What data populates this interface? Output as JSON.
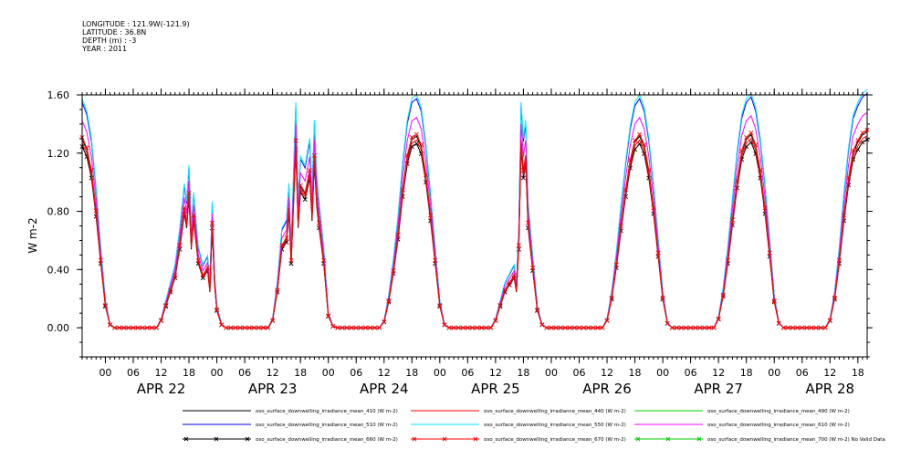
{
  "header": {
    "lines": [
      "LONGITUDE : 121.9W(-121.9)",
      "LATITUDE : 36.8N",
      "DEPTH (m) : -3",
      "YEAR : 2011"
    ]
  },
  "chart_data": {
    "type": "line",
    "title": "",
    "ylabel": "W m-2",
    "xlabel": "",
    "ylim": [
      -0.2,
      1.6
    ],
    "yticks": [
      "0.00",
      "0.40",
      "0.80",
      "1.20",
      "1.60"
    ],
    "ytick_values": [
      0.0,
      0.4,
      0.8,
      1.2,
      1.6
    ],
    "x_hour_labels": [
      "00",
      "06",
      "12",
      "18",
      "00",
      "06",
      "12",
      "18",
      "00",
      "06",
      "12",
      "18",
      "00",
      "06",
      "12",
      "18",
      "00",
      "06",
      "12",
      "18",
      "00",
      "06",
      "12",
      "18",
      "00",
      "06",
      "12",
      "18"
    ],
    "x_day_labels": [
      "APR 22",
      "APR 23",
      "APR 24",
      "APR 25",
      "APR 26",
      "APR 27",
      "APR 28"
    ],
    "x_start_hour": -5,
    "x_end_hour": 164,
    "grid": false,
    "legend_position": "bottom",
    "series": [
      {
        "name": "oso_surface_downwelling_irradiance_mean_410 (W m-2)",
        "color": "#000000",
        "scale": 1.02,
        "marker": "none"
      },
      {
        "name": "oso_surface_downwelling_irradiance_mean_440 (W m-2)",
        "color": "#ff0000",
        "scale": 1.0,
        "marker": "none"
      },
      {
        "name": "oso_surface_downwelling_irradiance_mean_490 (W m-2)",
        "color": "#00cc00",
        "scale": 1.03,
        "marker": "none"
      },
      {
        "name": "oso_surface_downwelling_irradiance_mean_510 (W m-2)",
        "color": "#0000ff",
        "scale": 1.22,
        "marker": "none"
      },
      {
        "name": "oso_surface_downwelling_irradiance_mean_550 (W m-2)",
        "color": "#00e5ff",
        "scale": 1.24,
        "marker": "none"
      },
      {
        "name": "oso_surface_downwelling_irradiance_mean_610 (W m-2)",
        "color": "#ff00ff",
        "scale": 1.12,
        "marker": "none"
      },
      {
        "name": "oso_surface_downwelling_irradiance_mean_660 (W m-2)",
        "color": "#000000",
        "scale": 0.98,
        "marker": "x"
      },
      {
        "name": "oso_surface_downwelling_irradiance_mean_670 (W m-2)",
        "color": "#ff0000",
        "scale": 1.03,
        "marker": "x"
      },
      {
        "name": "oso_surface_downwelling_irradiance_mean_700 (W m-2) No Valid Data",
        "color": "#00cc00",
        "scale": 0.0,
        "marker": "x"
      }
    ],
    "base_profile": {
      "description_points": "hour since APR 22 00:00, irradiance W m-2 (series mean_440)",
      "points": [
        [
          -5,
          1.27
        ],
        [
          -4,
          1.2
        ],
        [
          -3,
          1.05
        ],
        [
          -2,
          0.78
        ],
        [
          -1,
          0.45
        ],
        [
          0,
          0.15
        ],
        [
          1,
          0.02
        ],
        [
          2,
          0.0
        ],
        [
          11,
          0.0
        ],
        [
          12,
          0.05
        ],
        [
          13,
          0.15
        ],
        [
          14,
          0.25
        ],
        [
          15,
          0.35
        ],
        [
          16,
          0.55
        ],
        [
          17,
          0.8
        ],
        [
          17.5,
          0.7
        ],
        [
          18,
          0.9
        ],
        [
          18.5,
          0.55
        ],
        [
          19,
          0.75
        ],
        [
          20,
          0.45
        ],
        [
          21,
          0.35
        ],
        [
          22,
          0.4
        ],
        [
          22.5,
          0.25
        ],
        [
          23,
          0.7
        ],
        [
          23.5,
          0.3
        ],
        [
          24,
          0.12
        ],
        [
          25,
          0.02
        ],
        [
          26,
          0.0
        ],
        [
          35,
          0.0
        ],
        [
          36,
          0.05
        ],
        [
          37,
          0.25
        ],
        [
          38,
          0.55
        ],
        [
          39,
          0.6
        ],
        [
          39.5,
          0.8
        ],
        [
          40,
          0.45
        ],
        [
          41,
          1.25
        ],
        [
          41.5,
          0.7
        ],
        [
          42,
          0.95
        ],
        [
          43,
          0.9
        ],
        [
          44,
          1.05
        ],
        [
          44.5,
          0.75
        ],
        [
          45,
          1.15
        ],
        [
          45.5,
          0.85
        ],
        [
          46,
          0.7
        ],
        [
          47,
          0.45
        ],
        [
          48,
          0.08
        ],
        [
          49,
          0.01
        ],
        [
          50,
          0.0
        ],
        [
          59,
          0.0
        ],
        [
          60,
          0.04
        ],
        [
          61,
          0.18
        ],
        [
          62,
          0.38
        ],
        [
          63,
          0.62
        ],
        [
          64,
          0.92
        ],
        [
          65,
          1.15
        ],
        [
          66,
          1.27
        ],
        [
          67,
          1.29
        ],
        [
          68,
          1.22
        ],
        [
          69,
          1.02
        ],
        [
          70,
          0.75
        ],
        [
          71,
          0.45
        ],
        [
          72,
          0.15
        ],
        [
          73,
          0.02
        ],
        [
          74,
          0.0
        ],
        [
          83,
          0.0
        ],
        [
          84,
          0.05
        ],
        [
          85,
          0.15
        ],
        [
          86,
          0.25
        ],
        [
          87,
          0.3
        ],
        [
          88,
          0.35
        ],
        [
          88.5,
          0.25
        ],
        [
          89,
          0.55
        ],
        [
          89.5,
          1.25
        ],
        [
          90,
          1.05
        ],
        [
          90.5,
          1.15
        ],
        [
          91,
          0.7
        ],
        [
          92,
          0.4
        ],
        [
          93,
          0.12
        ],
        [
          94,
          0.02
        ],
        [
          95,
          0.0
        ],
        [
          107,
          0.0
        ],
        [
          108,
          0.05
        ],
        [
          109,
          0.2
        ],
        [
          110,
          0.42
        ],
        [
          111,
          0.68
        ],
        [
          112,
          0.92
        ],
        [
          113,
          1.12
        ],
        [
          114,
          1.25
        ],
        [
          115,
          1.29
        ],
        [
          116,
          1.22
        ],
        [
          117,
          1.05
        ],
        [
          118,
          0.8
        ],
        [
          119,
          0.5
        ],
        [
          120,
          0.2
        ],
        [
          121,
          0.03
        ],
        [
          122,
          0.0
        ],
        [
          131,
          0.0
        ],
        [
          132,
          0.06
        ],
        [
          133,
          0.22
        ],
        [
          134,
          0.45
        ],
        [
          135,
          0.72
        ],
        [
          136,
          0.98
        ],
        [
          137,
          1.18
        ],
        [
          138,
          1.27
        ],
        [
          139,
          1.3
        ],
        [
          140,
          1.22
        ],
        [
          141,
          1.05
        ],
        [
          142,
          0.8
        ],
        [
          143,
          0.5
        ],
        [
          144,
          0.18
        ],
        [
          145,
          0.03
        ],
        [
          146,
          0.0
        ],
        [
          155,
          0.0
        ],
        [
          156,
          0.05
        ],
        [
          157,
          0.2
        ],
        [
          158,
          0.45
        ],
        [
          159,
          0.75
        ],
        [
          160,
          1.0
        ],
        [
          161,
          1.18
        ],
        [
          162,
          1.25
        ],
        [
          163,
          1.3
        ],
        [
          164,
          1.32
        ]
      ]
    }
  }
}
